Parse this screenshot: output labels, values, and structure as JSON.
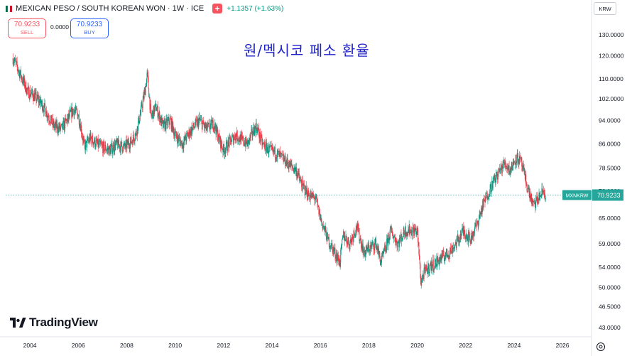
{
  "header": {
    "symbol": "MEXICAN PESO / SOUTH KOREAN WON · 1W · ICE",
    "change": "+1.1357 (+1.63%)"
  },
  "trade": {
    "sell_price": "70.9233",
    "sell_label": "SELL",
    "spread": "0.0000",
    "buy_price": "70.9233",
    "buy_label": "BUY"
  },
  "overlay_title": "원/멕시코 페소 환율",
  "watermark": "TradingView",
  "currency_select": "KRW",
  "last_price": {
    "tag": "MXNKRW",
    "value": "70.9233",
    "y": 70.9233
  },
  "colors": {
    "up": "#089981",
    "down": "#f23645",
    "last_tag_bg": "#26a69a",
    "title": "#1e22c8"
  },
  "chart_data": {
    "type": "line",
    "title": "",
    "scale": "log",
    "ylim": [
      41.5,
      139
    ],
    "xlim": [
      2003.0,
      2027.2
    ],
    "y_ticks": [
      130.0,
      120.0,
      110.0,
      102.0,
      94.0,
      86.0,
      78.5,
      72.0,
      65.0,
      59.0,
      54.0,
      50.0,
      46.5,
      43.0
    ],
    "y_tick_labels": [
      "130.0000",
      "120.0000",
      "110.0000",
      "102.0000",
      "94.0000",
      "86.0000",
      "78.5000",
      "72.0000",
      "65.0000",
      "59.0000",
      "54.0000",
      "50.0000",
      "46.5000",
      "43.0000"
    ],
    "x_ticks": [
      2004,
      2006,
      2008,
      2010,
      2012,
      2014,
      2016,
      2018,
      2020,
      2022,
      2024,
      2026
    ],
    "x_tick_labels": [
      "2004",
      "2006",
      "2008",
      "2010",
      "2012",
      "2014",
      "2016",
      "2018",
      "2020",
      "2022",
      "2024",
      "2026"
    ],
    "series": [
      {
        "x": [
          2003.3,
          2003.6,
          2003.9,
          2004.2,
          2004.5,
          2004.8,
          2005.0,
          2005.3,
          2005.6,
          2005.8,
          2006.0,
          2006.1,
          2006.25,
          2006.5,
          2006.75,
          2007.0,
          2007.3,
          2007.6,
          2007.9,
          2008.2,
          2008.4,
          2008.6,
          2008.75,
          2008.85,
          2009.0,
          2009.2,
          2009.5,
          2009.8,
          2010.0,
          2010.3,
          2010.6,
          2010.8,
          2011.0,
          2011.3,
          2011.6,
          2011.8,
          2012.0,
          2012.2,
          2012.5,
          2012.8,
          2013.0,
          2013.2,
          2013.35,
          2013.6,
          2013.9,
          2014.2,
          2014.5,
          2014.8,
          2015.0,
          2015.2,
          2015.5,
          2015.8,
          2016.0,
          2016.3,
          2016.6,
          2016.8,
          2016.95,
          2017.2,
          2017.5,
          2017.8,
          2018.0,
          2018.3,
          2018.5,
          2018.7,
          2018.9,
          2019.2,
          2019.5,
          2019.8,
          2020.0,
          2020.15,
          2020.3,
          2020.5,
          2020.8,
          2021.0,
          2021.3,
          2021.6,
          2021.9,
          2022.2,
          2022.5,
          2022.7,
          2022.9,
          2023.1,
          2023.35,
          2023.6,
          2023.85,
          2024.1,
          2024.3,
          2024.4,
          2024.55,
          2024.8,
          2025.0,
          2025.2,
          2025.3
        ],
        "y": [
          119,
          112,
          105,
          103,
          100,
          95,
          92,
          91,
          95,
          98,
          96,
          92,
          85,
          88,
          86,
          85,
          84,
          86,
          85,
          87,
          90,
          98,
          105,
          112,
          95,
          99,
          92,
          94,
          89,
          86,
          90,
          92,
          94,
          91,
          93,
          88,
          84,
          86,
          89,
          87,
          86,
          90,
          92,
          86,
          84,
          83,
          81,
          79,
          78,
          74,
          71,
          70,
          65,
          60,
          57,
          55,
          61,
          59,
          63,
          57,
          58,
          59,
          55,
          58,
          62,
          59,
          62,
          62,
          62,
          51,
          53,
          54,
          55,
          56,
          57,
          59,
          62,
          60,
          64,
          68,
          71,
          74,
          77,
          80,
          78,
          82,
          80,
          77,
          73,
          68,
          70,
          72,
          71
        ]
      }
    ]
  }
}
